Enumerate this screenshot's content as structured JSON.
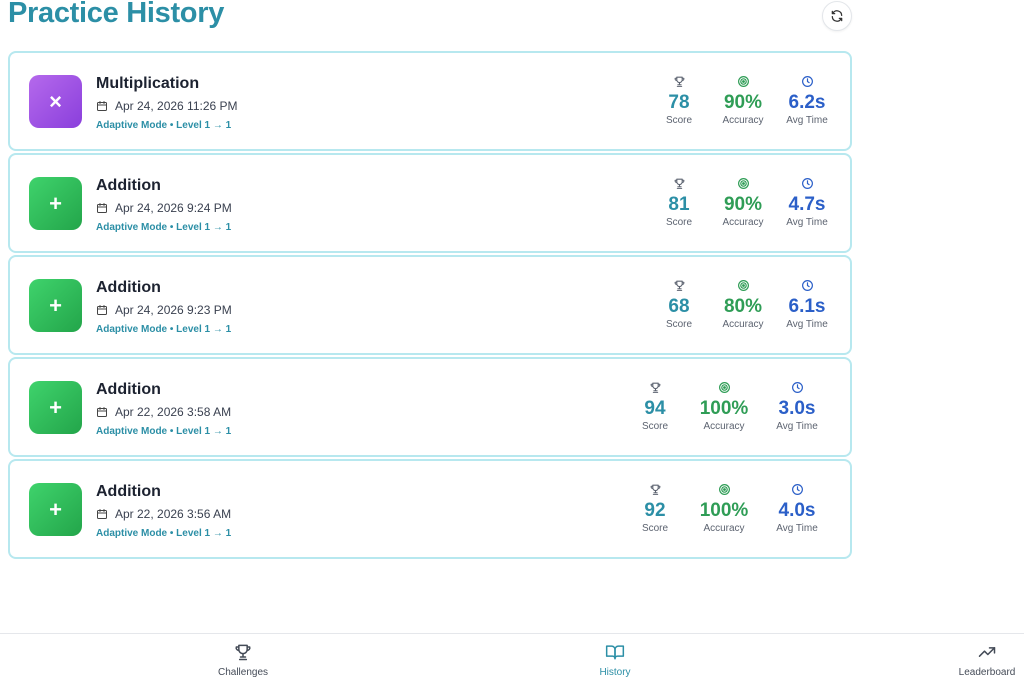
{
  "header": {
    "title": "Practice History"
  },
  "icons": {
    "refresh": "refresh-icon",
    "calendar": "calendar-icon",
    "score": "trophy-icon",
    "accuracy": "target-icon",
    "avg_time": "clock-icon",
    "history": "book-icon",
    "leaderboard": "trend-up-icon"
  },
  "colors": {
    "accent": "#2c8fa6",
    "accuracy": "#2f9d56",
    "time": "#2b5fc8",
    "card_border": "#b7e8ef",
    "multiplication": "#9b4fe4",
    "addition": "#2fbe5a"
  },
  "stat_labels": {
    "score": "Score",
    "accuracy": "Accuracy",
    "avg_time": "Avg Time"
  },
  "sessions": [
    {
      "name": "Multiplication",
      "symbol": "×",
      "date": "Apr 24, 2026 11:26 PM",
      "mode": "Adaptive Mode • Level 1 → 1",
      "score": "78",
      "accuracy": "90%",
      "avg_time": "6.2s"
    },
    {
      "name": "Addition",
      "symbol": "+",
      "date": "Apr 24, 2026 9:24 PM",
      "mode": "Adaptive Mode • Level 1 → 1",
      "score": "81",
      "accuracy": "90%",
      "avg_time": "4.7s"
    },
    {
      "name": "Addition",
      "symbol": "+",
      "date": "Apr 24, 2026 9:23 PM",
      "mode": "Adaptive Mode • Level 1 → 1",
      "score": "68",
      "accuracy": "80%",
      "avg_time": "6.1s"
    },
    {
      "name": "Addition",
      "symbol": "+",
      "date": "Apr 22, 2026 3:58 AM",
      "mode": "Adaptive Mode • Level 1 → 1",
      "score": "94",
      "accuracy": "100%",
      "avg_time": "3.0s"
    },
    {
      "name": "Addition",
      "symbol": "+",
      "date": "Apr 22, 2026 3:56 AM",
      "mode": "Adaptive Mode • Level 1 → 1",
      "score": "92",
      "accuracy": "100%",
      "avg_time": "4.0s"
    }
  ],
  "nav": {
    "challenges": "Challenges",
    "history": "History",
    "leaderboard": "Leaderboard"
  }
}
